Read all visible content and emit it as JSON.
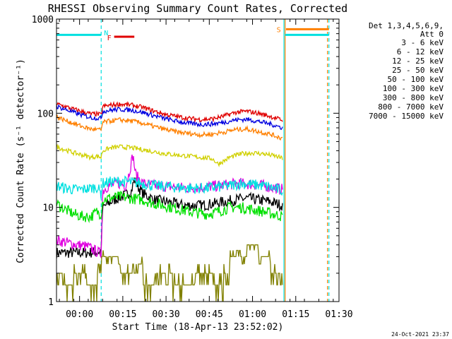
{
  "chart_data": {
    "type": "line",
    "title": "RHESSI Observing Summary Count Rates, Corrected",
    "xlabel": "Start Time (18-Apr-13 23:52:02)",
    "ylabel": "Corrected Count Rate (s⁻¹ detector⁻¹)",
    "footer": "24-Oct-2021 23:37",
    "x_unit": "minutes after start time",
    "xlim": [
      0,
      98
    ],
    "ylim": [
      1,
      1000
    ],
    "yscale": "log",
    "xticks": [
      {
        "x": 8,
        "label": "00:00"
      },
      {
        "x": 23,
        "label": "00:15"
      },
      {
        "x": 38,
        "label": "00:30"
      },
      {
        "x": 53,
        "label": "00:45"
      },
      {
        "x": 68,
        "label": "01:00"
      },
      {
        "x": 83,
        "label": "01:15"
      },
      {
        "x": 98,
        "label": "01:30"
      }
    ],
    "yticks": [
      {
        "y": 1,
        "label": "1"
      },
      {
        "y": 10,
        "label": "10"
      },
      {
        "y": 100,
        "label": "100"
      },
      {
        "y": 1000,
        "label": "1000"
      }
    ],
    "legend": {
      "position": "right",
      "header": [
        "Det 1,3,4,5,6,9,",
        "Att 0"
      ]
    },
    "series": [
      {
        "name": "3 - 6 keV",
        "color": "#000000",
        "x": [
          0,
          11,
          15.5,
          16,
          18,
          21,
          24,
          26,
          27,
          28,
          30,
          34,
          38,
          44,
          50,
          55,
          58,
          62,
          66,
          70,
          74,
          78.5
        ],
        "y": [
          3.3,
          3.3,
          3.4,
          10,
          11,
          12.5,
          13.5,
          15,
          20,
          17,
          14,
          12,
          11.5,
          10.5,
          10.5,
          11,
          11.5,
          12,
          12.5,
          12,
          11.5,
          10.5
        ]
      },
      {
        "name": "6 - 12 keV",
        "color": "#e000e0",
        "x": [
          0,
          4,
          11,
          15.5,
          16,
          18,
          22,
          24,
          25,
          26.5,
          27.5,
          30,
          34,
          40,
          46,
          52,
          56,
          60,
          64,
          68,
          72,
          78.5
        ],
        "y": [
          4.5,
          4.2,
          3.8,
          3.2,
          15,
          17,
          18,
          17,
          22,
          36,
          22,
          18,
          17,
          16.5,
          16,
          16.5,
          17,
          17.5,
          18,
          17.5,
          17,
          15.5
        ]
      },
      {
        "name": "12 - 25 keV",
        "color": "#00e000",
        "x": [
          0,
          3,
          6,
          9,
          12,
          14,
          15.5,
          16,
          18,
          22,
          26,
          30,
          34,
          40,
          46,
          52,
          56,
          60,
          64,
          68,
          72,
          78.5
        ],
        "y": [
          11,
          9.5,
          8.5,
          8,
          8,
          9,
          8.5,
          12,
          12.5,
          13,
          12.5,
          12,
          11,
          10,
          9,
          8.5,
          9,
          10,
          10,
          9.5,
          9,
          8
        ]
      },
      {
        "name": "25 - 50 keV",
        "color": "#00e0e0",
        "x": [
          0,
          3,
          6,
          9,
          12,
          14,
          15.5,
          16,
          18,
          22,
          26,
          30,
          34,
          40,
          46,
          52,
          56,
          60,
          64,
          68,
          72,
          78.5
        ],
        "y": [
          17,
          16,
          15.5,
          15.5,
          16,
          16.5,
          14,
          18,
          18.5,
          19,
          18.5,
          18,
          17,
          16.5,
          16,
          16,
          16.5,
          17,
          18,
          17.5,
          17,
          15
        ]
      },
      {
        "name": "50 - 100 keV",
        "color": "#d0d000",
        "x": [
          0,
          3,
          6,
          9,
          12,
          14,
          15.5,
          16,
          19,
          22,
          26,
          30,
          34,
          38,
          42,
          46,
          50,
          54,
          56,
          58,
          60,
          64,
          68,
          72,
          76,
          78.5
        ],
        "y": [
          44,
          41,
          38,
          36,
          34,
          35,
          34,
          40,
          43,
          44,
          43,
          41,
          39,
          37,
          36,
          35,
          34,
          33,
          29,
          31,
          34,
          37,
          38,
          37,
          35,
          33
        ]
      },
      {
        "name": "100 - 300 keV",
        "color": "#e00000",
        "x": [
          0,
          3,
          6,
          9,
          12,
          14,
          15.5,
          16,
          19,
          22,
          26,
          30,
          34,
          38,
          42,
          46,
          50,
          54,
          58,
          62,
          66,
          70,
          74,
          78.5
        ],
        "y": [
          125,
          118,
          110,
          104,
          98,
          98,
          96,
          118,
          122,
          125,
          122,
          115,
          105,
          97,
          92,
          88,
          86,
          87,
          93,
          102,
          105,
          100,
          93,
          84
        ]
      },
      {
        "name": "300 - 800 keV",
        "color": "#0000e0",
        "x": [
          0,
          3,
          6,
          9,
          12,
          14,
          15.5,
          16,
          19,
          22,
          26,
          30,
          34,
          38,
          42,
          46,
          50,
          54,
          58,
          62,
          66,
          70,
          74,
          78.5
        ],
        "y": [
          118,
          110,
          102,
          95,
          90,
          89,
          88,
          105,
          108,
          110,
          108,
          102,
          94,
          87,
          82,
          78,
          76,
          77,
          80,
          85,
          86,
          82,
          77,
          70
        ]
      },
      {
        "name": "800 - 7000 keV",
        "color": "#ff8000",
        "x": [
          0,
          3,
          6,
          9,
          12,
          14,
          15.5,
          16,
          19,
          22,
          26,
          30,
          34,
          38,
          42,
          46,
          50,
          54,
          58,
          62,
          66,
          70,
          74,
          78.5
        ],
        "y": [
          92,
          84,
          78,
          72,
          68,
          67,
          66,
          80,
          83,
          85,
          83,
          78,
          72,
          67,
          63,
          61,
          59,
          60,
          63,
          67,
          68,
          64,
          60,
          54
        ]
      },
      {
        "name": "7000 - 15000 keV",
        "color": "#808000",
        "x": [
          0,
          2,
          2.1,
          6,
          6.1,
          10,
          10.1,
          14,
          14.1,
          15.5,
          15.6,
          22,
          22.1,
          26,
          26.1,
          30,
          30.1,
          34,
          34.1,
          40,
          40.1,
          48,
          48.1,
          54,
          54.1,
          58,
          58.1,
          60,
          60.1,
          66,
          66.1,
          70,
          70.1,
          74,
          74.1,
          78.5
        ],
        "y": [
          2,
          2,
          1.5,
          1.5,
          2,
          2,
          1.5,
          1.5,
          2,
          2,
          3,
          3,
          2,
          2,
          2.5,
          2.5,
          1.5,
          1.5,
          2,
          2,
          1.5,
          1.5,
          2,
          2,
          1.5,
          1.5,
          2,
          2,
          3,
          3,
          4,
          4,
          3,
          3,
          2,
          2
        ]
      }
    ],
    "annotations": [
      {
        "label": "N",
        "x": 15.5,
        "color": "#00e0e0"
      },
      {
        "label": "F",
        "color": "#e00000",
        "x_range": [
          20,
          27
        ],
        "y": 650
      },
      {
        "label": "S",
        "color": "#ff8000",
        "x": 79.3,
        "x_range": [
          79.6,
          94.5
        ],
        "y": 780
      }
    ],
    "state_bars": [
      {
        "color": "#00e0e0",
        "x_range": [
          0,
          15.5
        ],
        "y": 680
      },
      {
        "color": "#00e0e0",
        "x_range": [
          79.3,
          94.5
        ],
        "y": 680
      }
    ],
    "vertical_markers": [
      {
        "x": 15.5,
        "color": "#00e0e0",
        "style": "dashed"
      },
      {
        "x": 78.9,
        "color": "#00e0e0",
        "style": "solid"
      },
      {
        "x": 79.3,
        "color": "#ff8000",
        "style": "solid"
      },
      {
        "x": 94.0,
        "color": "#ff8000",
        "style": "dashed"
      },
      {
        "x": 94.5,
        "color": "#00e0e0",
        "style": "dashed"
      }
    ]
  }
}
